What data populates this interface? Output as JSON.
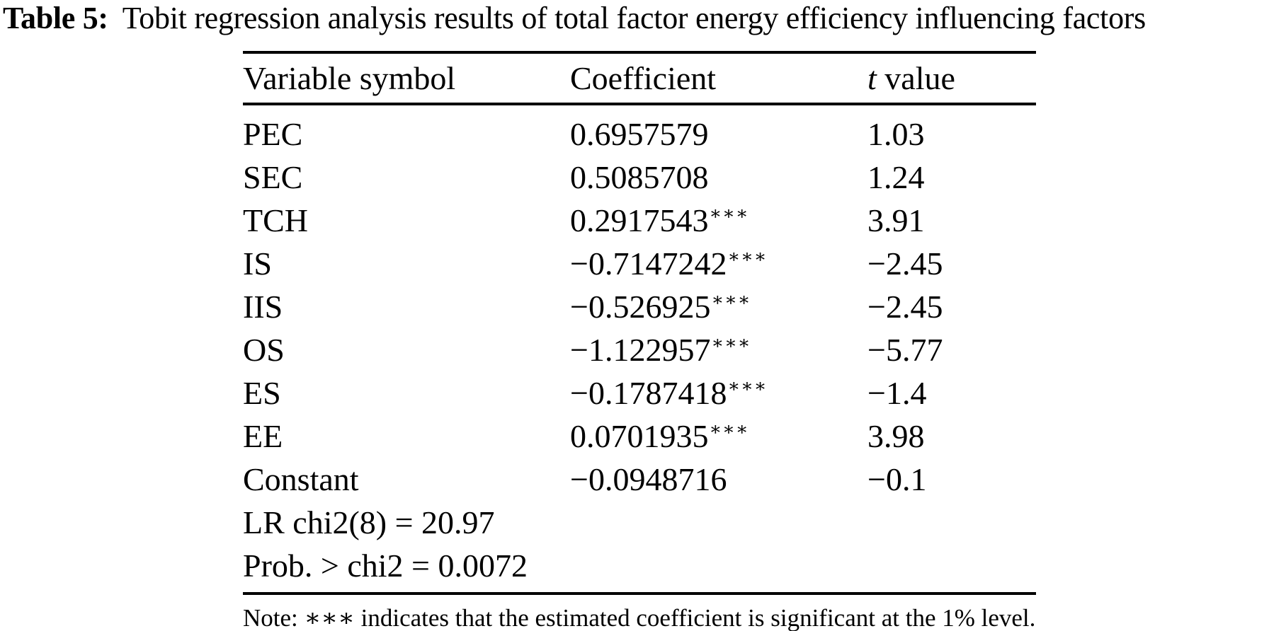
{
  "title": {
    "label": "Table 5:",
    "text": "Tobit regression analysis results of total factor energy efficiency influencing factors"
  },
  "table": {
    "header": {
      "variable_symbol": "Variable symbol",
      "coefficient": "Coefficient",
      "t_italic": "t",
      "t_rest": " value"
    },
    "rows": [
      {
        "variable": "PEC",
        "coefficient": "0.6957579",
        "stars": "",
        "t_value": "1.03"
      },
      {
        "variable": "SEC",
        "coefficient": "0.5085708",
        "stars": "",
        "t_value": "1.24"
      },
      {
        "variable": "TCH",
        "coefficient": "0.2917543",
        "stars": "∗∗∗",
        "t_value": "3.91"
      },
      {
        "variable": "IS",
        "coefficient": "−0.7147242",
        "stars": "∗∗∗",
        "t_value": "−2.45"
      },
      {
        "variable": "IIS",
        "coefficient": "−0.526925",
        "stars": "∗∗∗",
        "t_value": "−2.45"
      },
      {
        "variable": "OS",
        "coefficient": "−1.122957",
        "stars": "∗∗∗",
        "t_value": "−5.77"
      },
      {
        "variable": "ES",
        "coefficient": "−0.1787418",
        "stars": "∗∗∗",
        "t_value": "−1.4"
      },
      {
        "variable": "EE",
        "coefficient": "0.0701935",
        "stars": "∗∗∗",
        "t_value": "3.98"
      },
      {
        "variable": "Constant",
        "coefficient": "−0.0948716",
        "stars": "",
        "t_value": "−0.1"
      }
    ],
    "summary_rows": [
      "LR chi2(8) = 20.97",
      "Prob. > chi2 = 0.0072"
    ],
    "note": "Note: ∗∗∗ indicates that the estimated coefficient is significant at the 1% level."
  },
  "colors": {
    "background": "#ffffff",
    "text": "#000000",
    "rule": "#000000"
  }
}
